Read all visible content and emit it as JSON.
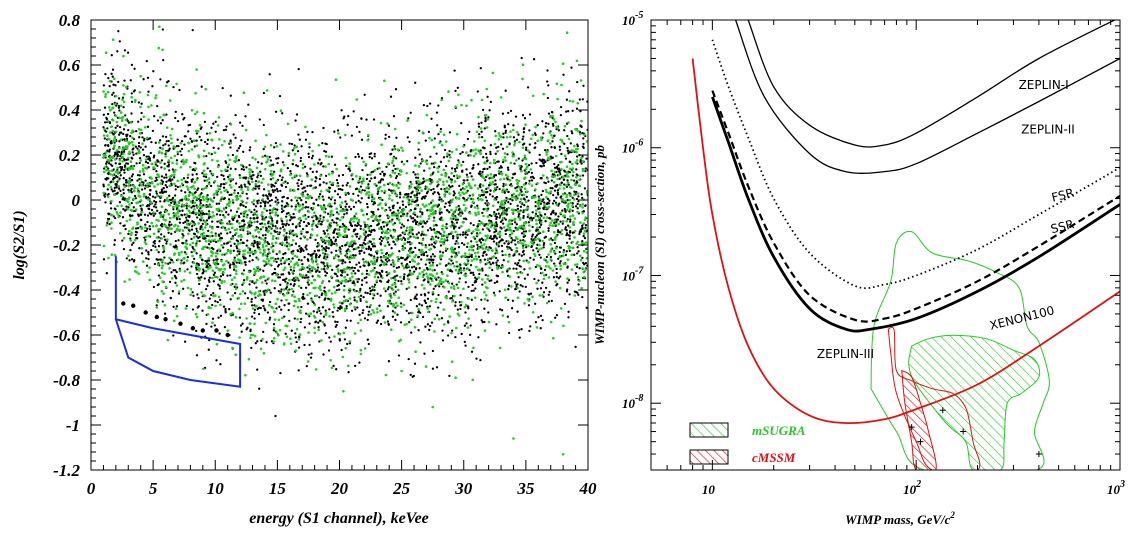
{
  "chart_data": [
    {
      "type": "scatter",
      "xlabel": "energy (S1 channel), keVee",
      "ylabel": "log(S2/S1)",
      "xlim": [
        0,
        40
      ],
      "ylim": [
        -1.2,
        0.8
      ],
      "x_ticks": [
        "0",
        "5",
        "10",
        "15",
        "20",
        "25",
        "30",
        "35",
        "40"
      ],
      "y_ticks": [
        "-1.2",
        "-1",
        "-0.8",
        "-0.6",
        "-0.4",
        "-0.2",
        "0",
        "0.2",
        "0.4",
        "0.6",
        "0.8"
      ],
      "band_trend": [
        [
          2,
          0.18
        ],
        [
          5,
          0.02
        ],
        [
          10,
          -0.12
        ],
        [
          15,
          -0.18
        ],
        [
          20,
          -0.2
        ],
        [
          25,
          -0.15
        ],
        [
          30,
          -0.1
        ],
        [
          35,
          -0.05
        ],
        [
          40,
          0.0
        ]
      ],
      "band_spread": 0.23,
      "series": [
        {
          "color": "#000000",
          "count": 4200
        },
        {
          "color": "#22cc22",
          "count": 2400
        }
      ],
      "signal_box": [
        [
          2,
          -0.25
        ],
        [
          2,
          -0.53
        ],
        [
          5,
          -0.57
        ],
        [
          12,
          -0.64
        ],
        [
          12,
          -0.83
        ],
        [
          8,
          -0.8
        ],
        [
          5,
          -0.76
        ],
        [
          3,
          -0.7
        ],
        [
          2,
          -0.53
        ]
      ],
      "box_events": [
        [
          2.6,
          -0.46
        ],
        [
          3.4,
          -0.47
        ],
        [
          4.4,
          -0.5
        ],
        [
          5.3,
          -0.52
        ],
        [
          6.0,
          -0.53
        ],
        [
          7.2,
          -0.55
        ],
        [
          8.2,
          -0.57
        ],
        [
          9.0,
          -0.58
        ],
        [
          10.1,
          -0.58
        ],
        [
          11.0,
          -0.6
        ]
      ],
      "outliers": [
        [
          5.5,
          0.77
        ],
        [
          34,
          -1.06
        ],
        [
          27.5,
          -0.92
        ],
        [
          38,
          -1.13
        ],
        [
          4,
          0.55
        ],
        [
          8.5,
          0.58
        ]
      ],
      "box_color": "#1a2ee0"
    },
    {
      "type": "line",
      "xscale": "log",
      "yscale": "log",
      "xlabel": "WIMP mass, GeV/c",
      "xlabel_sup": "2",
      "ylabel": "WIMP-nucleon (SI) cross-section, pb",
      "xlim": [
        5,
        1000
      ],
      "ylim": [
        3e-09,
        1e-05
      ],
      "x_ticks": [
        {
          "base": "10",
          "exp": ""
        },
        {
          "base": "10",
          "exp": "2"
        },
        {
          "base": "10",
          "exp": "3"
        }
      ],
      "y_ticks": [
        {
          "base": "10",
          "exp": "-8"
        },
        {
          "base": "10",
          "exp": "-7"
        },
        {
          "base": "10",
          "exp": "-6"
        },
        {
          "base": "10",
          "exp": "-5"
        }
      ],
      "series": [
        {
          "name": "ZEPLIN-I",
          "style": "thin",
          "color": "#000000",
          "points": [
            [
              15,
              1e-05
            ],
            [
              20,
              3e-06
            ],
            [
              30,
              1.5e-06
            ],
            [
              50,
              1.05e-06
            ],
            [
              70,
              1.05e-06
            ],
            [
              100,
              1.3e-06
            ],
            [
              200,
              2.5e-06
            ],
            [
              400,
              5e-06
            ],
            [
              1000,
              1.05e-05
            ]
          ]
        },
        {
          "name": "ZEPLIN-II",
          "style": "thin",
          "color": "#000000",
          "points": [
            [
              13,
              1e-05
            ],
            [
              18,
              2.5e-06
            ],
            [
              30,
              9e-07
            ],
            [
              45,
              6.5e-07
            ],
            [
              70,
              6.5e-07
            ],
            [
              100,
              7.5e-07
            ],
            [
              200,
              1.3e-06
            ],
            [
              400,
              2.3e-06
            ],
            [
              1000,
              5e-06
            ]
          ]
        },
        {
          "name": "FSR",
          "style": "dotted",
          "color": "#000000",
          "points": [
            [
              10,
              7e-06
            ],
            [
              12,
              3e-06
            ],
            [
              15,
              1.2e-06
            ],
            [
              20,
              4e-07
            ],
            [
              30,
              1.5e-07
            ],
            [
              50,
              8.3e-08
            ],
            [
              70,
              8.5e-08
            ],
            [
              100,
              1e-07
            ],
            [
              200,
              1.6e-07
            ],
            [
              400,
              3e-07
            ],
            [
              1000,
              7e-07
            ]
          ]
        },
        {
          "name": "SSR",
          "style": "dashed",
          "color": "#000000",
          "points": [
            [
              10,
              2.8e-06
            ],
            [
              12,
              1.3e-06
            ],
            [
              15,
              5e-07
            ],
            [
              20,
              1.8e-07
            ],
            [
              30,
              7e-08
            ],
            [
              50,
              4.5e-08
            ],
            [
              70,
              4.6e-08
            ],
            [
              100,
              5.5e-08
            ],
            [
              200,
              9e-08
            ],
            [
              400,
              1.7e-07
            ],
            [
              1000,
              4.2e-07
            ]
          ]
        },
        {
          "name": "ZEPLIN-III",
          "style": "bold",
          "color": "#000000",
          "points": [
            [
              10,
              2.5e-06
            ],
            [
              12,
              1.1e-06
            ],
            [
              15,
              4e-07
            ],
            [
              20,
              1.4e-07
            ],
            [
              30,
              5.5e-08
            ],
            [
              45,
              3.8e-08
            ],
            [
              60,
              3.8e-08
            ],
            [
              100,
              4.6e-08
            ],
            [
              200,
              7.5e-08
            ],
            [
              400,
              1.4e-07
            ],
            [
              1000,
              3.6e-07
            ]
          ]
        },
        {
          "name": "XENON100",
          "style": "thin",
          "color": "#e01010",
          "points": [
            [
              8,
              5e-06
            ],
            [
              9,
              1e-06
            ],
            [
              10,
              3e-07
            ],
            [
              12,
              8e-08
            ],
            [
              15,
              2.8e-08
            ],
            [
              20,
              1.3e-08
            ],
            [
              30,
              8e-09
            ],
            [
              45,
              7e-09
            ],
            [
              70,
              7.5e-09
            ],
            [
              100,
              9e-09
            ],
            [
              200,
              1.4e-08
            ],
            [
              400,
              2.8e-08
            ],
            [
              1000,
              7.5e-08
            ]
          ]
        }
      ],
      "regions": [
        {
          "name": "mSUGRA",
          "color": "#22cc22",
          "outer": [
            [
              60,
              1.3e-08
            ],
            [
              62,
              4e-08
            ],
            [
              75,
              9e-08
            ],
            [
              80,
              1.8e-07
            ],
            [
              95,
              2.2e-07
            ],
            [
              120,
              1.5e-07
            ],
            [
              180,
              1.3e-07
            ],
            [
              250,
              1.05e-07
            ],
            [
              320,
              8e-08
            ],
            [
              350,
              4e-08
            ],
            [
              400,
              3e-08
            ],
            [
              450,
              1.5e-08
            ],
            [
              420,
              1e-08
            ],
            [
              380,
              6e-09
            ],
            [
              390,
              3e-09
            ],
            [
              110,
              3e-09
            ],
            [
              80,
              6e-09
            ],
            [
              60,
              1.3e-08
            ]
          ],
          "inner": [
            [
              95,
              2.8e-08
            ],
            [
              115,
              3.2e-08
            ],
            [
              150,
              3.4e-08
            ],
            [
              220,
              3.2e-08
            ],
            [
              300,
              2.6e-08
            ],
            [
              380,
              2.2e-08
            ],
            [
              400,
              1.6e-08
            ],
            [
              330,
              1.2e-08
            ],
            [
              280,
              1e-08
            ],
            [
              270,
              5e-09
            ],
            [
              260,
              3e-09
            ],
            [
              190,
              3e-09
            ],
            [
              175,
              5e-09
            ],
            [
              140,
              7e-09
            ],
            [
              100,
              1.4e-08
            ],
            [
              92,
              2e-08
            ],
            [
              95,
              2.8e-08
            ]
          ]
        },
        {
          "name": "cMSSM",
          "color": "#e01010",
          "outer": [
            [
              73,
              3.8e-08
            ],
            [
              78,
              3.7e-08
            ],
            [
              80,
              1.8e-08
            ],
            [
              95,
              1.5e-08
            ],
            [
              120,
              1.3e-08
            ],
            [
              150,
              1.2e-08
            ],
            [
              170,
              1e-08
            ],
            [
              180,
              8e-09
            ],
            [
              190,
              5e-09
            ],
            [
              200,
              3e-09
            ],
            [
              120,
              3e-09
            ],
            [
              100,
              5e-09
            ],
            [
              80,
              1.2e-08
            ],
            [
              75,
              2.5e-08
            ],
            [
              73,
              3.8e-08
            ]
          ],
          "inner": [
            [
              85,
              1.8e-08
            ],
            [
              95,
              1.6e-08
            ],
            [
              105,
              1e-08
            ],
            [
              115,
              6e-09
            ],
            [
              125,
              3e-09
            ],
            [
              100,
              3e-09
            ],
            [
              95,
              5e-09
            ],
            [
              88,
              1e-08
            ],
            [
              85,
              1.8e-08
            ]
          ]
        }
      ],
      "benchmarks": [
        [
          95,
          6.5e-09
        ],
        [
          105,
          5e-09
        ],
        [
          135,
          8.8e-09
        ],
        [
          170,
          6e-09
        ],
        [
          400,
          4e-09
        ]
      ],
      "legend": [
        {
          "label": "mSUGRA",
          "color": "#22cc22"
        },
        {
          "label": "cMSSM",
          "color": "#e01010"
        }
      ]
    }
  ]
}
